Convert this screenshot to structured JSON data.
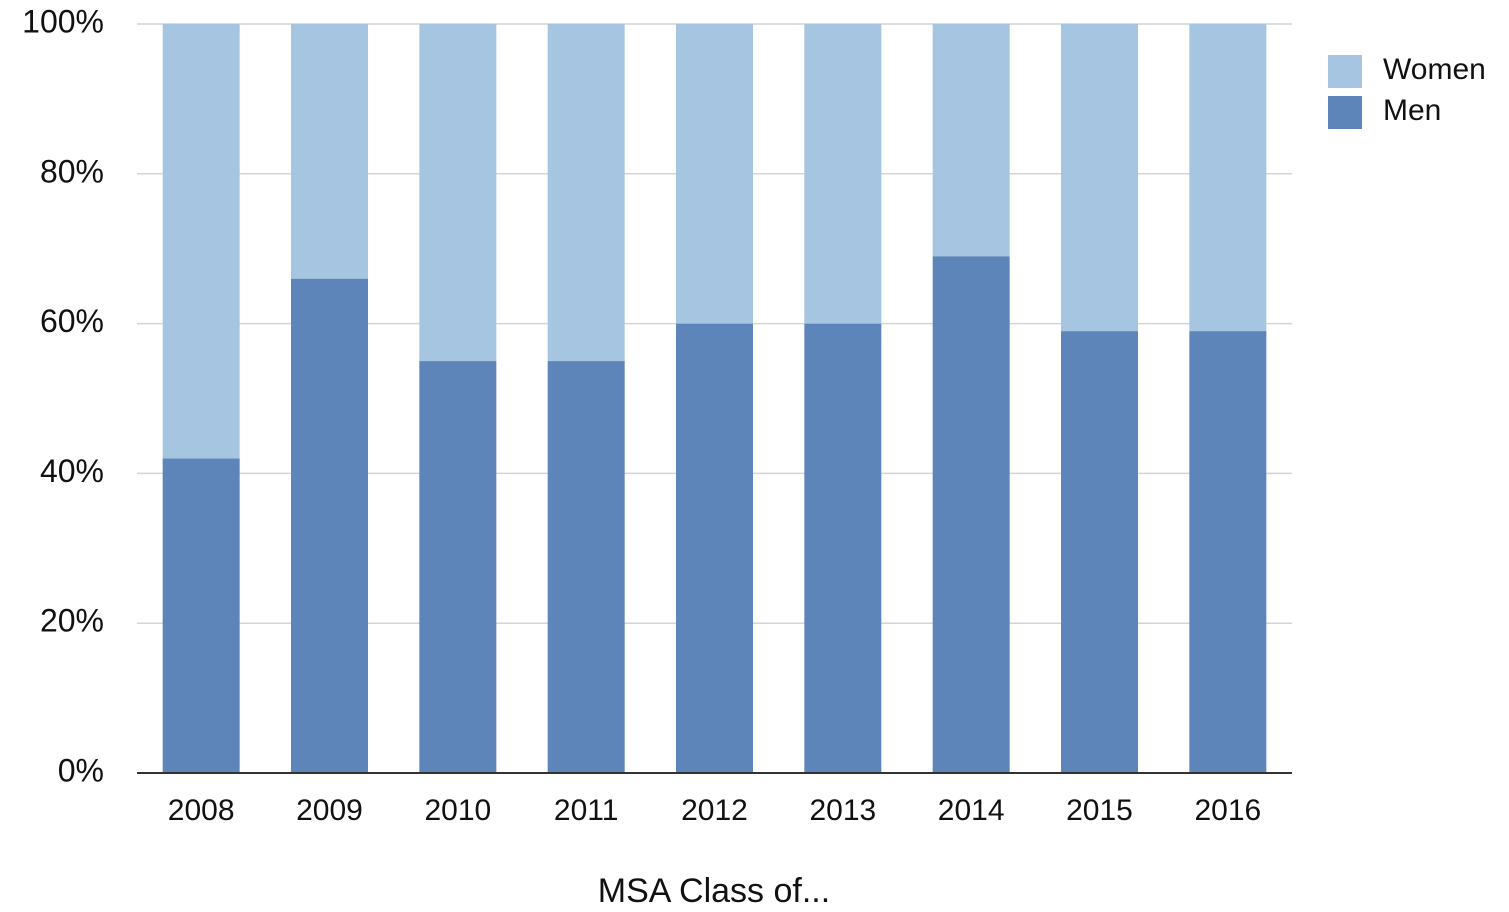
{
  "chart_data": {
    "type": "stacked-bar",
    "x_label": "MSA Class of...",
    "categories": [
      "2008",
      "2009",
      "2010",
      "2011",
      "2012",
      "2013",
      "2014",
      "2015",
      "2016"
    ],
    "series": [
      {
        "name": "Men",
        "color": "#5d85b9",
        "values": [
          42,
          66,
          55,
          55,
          60,
          60,
          69,
          59,
          59
        ]
      },
      {
        "name": "Women",
        "color": "#a6c5e0",
        "values": [
          58,
          34,
          45,
          45,
          40,
          40,
          31,
          41,
          41
        ]
      }
    ],
    "ylim": [
      0,
      100
    ],
    "yticks": [
      {
        "value": 0,
        "label": "0%"
      },
      {
        "value": 20,
        "label": "20%"
      },
      {
        "value": 40,
        "label": "40%"
      },
      {
        "value": 60,
        "label": "60%"
      },
      {
        "value": 80,
        "label": "80%"
      },
      {
        "value": 100,
        "label": "100%"
      }
    ],
    "grid": true,
    "legend": "top-right"
  }
}
